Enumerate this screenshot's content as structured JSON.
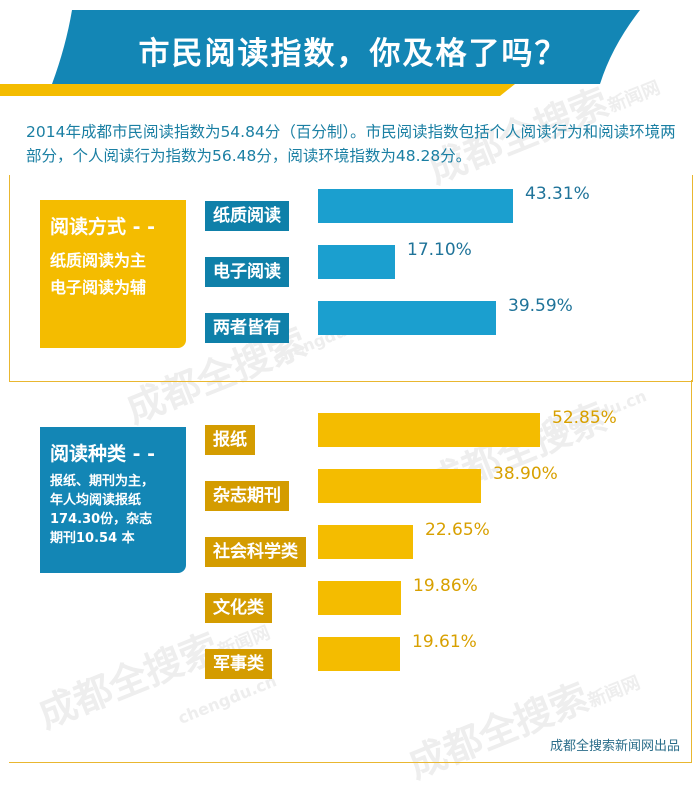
{
  "header": {
    "title": "市民阅读指数，你及格了吗？"
  },
  "intro_text": "2014年成都市民阅读指数为54.84分（百分制）。市民阅读指数包括个人阅读行为和阅读环境两部分，个人阅读行为指数为56.48分，阅读环境指数为48.28分。",
  "section1": {
    "title": "阅读方式 - -",
    "subtitle_lines": [
      "纸质阅读为主",
      "电子阅读为辅"
    ]
  },
  "section2": {
    "title": "阅读种类 - -",
    "subtitle_lines": [
      "报纸、期刊为主，",
      "年人均阅读报纸",
      "174.30份，杂志",
      "期刊10.54 本"
    ]
  },
  "chart_data": [
    {
      "type": "bar",
      "orientation": "horizontal",
      "categories": [
        "纸质阅读",
        "电子阅读",
        "两者皆有"
      ],
      "values": [
        43.31,
        17.1,
        39.59
      ],
      "value_labels": [
        "43.31%",
        "17.10%",
        "39.59%"
      ],
      "bar_color": "#1b9fcf",
      "label_color": "#0f80a9",
      "value_text_color": "#1f7399"
    },
    {
      "type": "bar",
      "orientation": "horizontal",
      "categories": [
        "报纸",
        "杂志期刊",
        "社会科学类",
        "文化类",
        "军事类"
      ],
      "values": [
        52.85,
        38.9,
        22.65,
        19.86,
        19.61
      ],
      "value_labels": [
        "52.85%",
        "38.90%",
        "22.65%",
        "19.86%",
        "19.61%"
      ],
      "bar_color": "#f4bc00",
      "label_color": "#d49c00",
      "value_text_color": "#d8a000"
    }
  ],
  "credit": "成都全搜索新闻网出品",
  "watermark": {
    "main": "成都全搜索",
    "sub": "新闻网",
    "domain": "chengdu.cn"
  }
}
